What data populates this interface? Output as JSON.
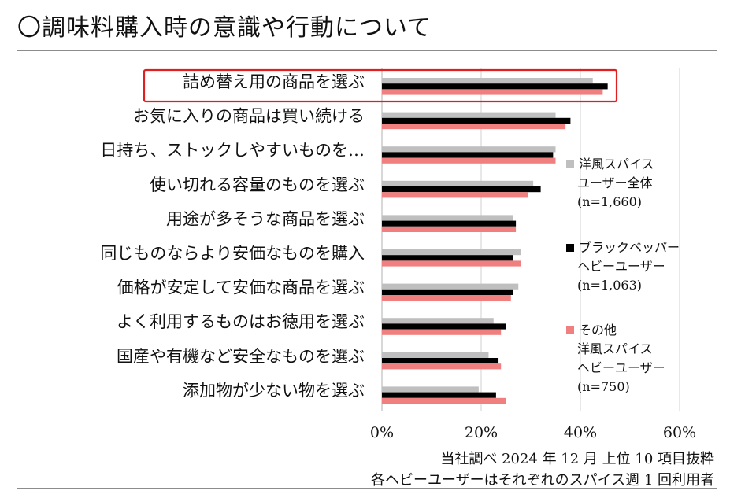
{
  "title": "〇調味料購入時の意識や行動について",
  "chart_data": {
    "type": "bar",
    "orientation": "horizontal",
    "categories": [
      "詰め替え用の商品を選ぶ",
      "お気に入りの商品は買い続ける",
      "日持ち、ストックしやすいものを…",
      "使い切れる容量のものを選ぶ",
      "用途が多そうな商品を選ぶ",
      "同じものならより安価なものを購入",
      "価格が安定して安価な商品を選ぶ",
      "よく利用するものはお徳用を選ぶ",
      "国産や有機など安全なものを選ぶ",
      "添加物が少ない物を選ぶ"
    ],
    "series": [
      {
        "name": "洋風スパイス\nユーザー全体\n(n=1,660)",
        "color": "#bfbfbf",
        "values": [
          42.5,
          35.0,
          35.0,
          30.5,
          26.5,
          28.0,
          27.5,
          22.5,
          21.5,
          19.5
        ]
      },
      {
        "name": "ブラックペッパー\nヘビーユーザー\n(n=1,063)",
        "color": "#000000",
        "values": [
          45.5,
          38.0,
          34.5,
          32.0,
          27.0,
          26.5,
          26.5,
          25.0,
          23.5,
          23.0
        ]
      },
      {
        "name": "その他\n洋風スパイス\nヘビーユーザー\n(n=750)",
        "color": "#f08080",
        "values": [
          44.5,
          37.0,
          35.0,
          29.5,
          27.0,
          28.0,
          26.0,
          24.0,
          24.0,
          25.0
        ]
      }
    ],
    "xlim": [
      0,
      60
    ],
    "xticks": [
      "0%",
      "20%",
      "40%",
      "60%"
    ],
    "grid": true,
    "legend_position": "right",
    "highlight_category_index": 0,
    "highlight_color": "#e02020"
  },
  "notes": {
    "line1": "当社調べ 2024 年 12 月 上位 10 項目抜粋",
    "line2": "各ヘビーユーザーはそれぞれのスパイス週 1 回利用者"
  }
}
